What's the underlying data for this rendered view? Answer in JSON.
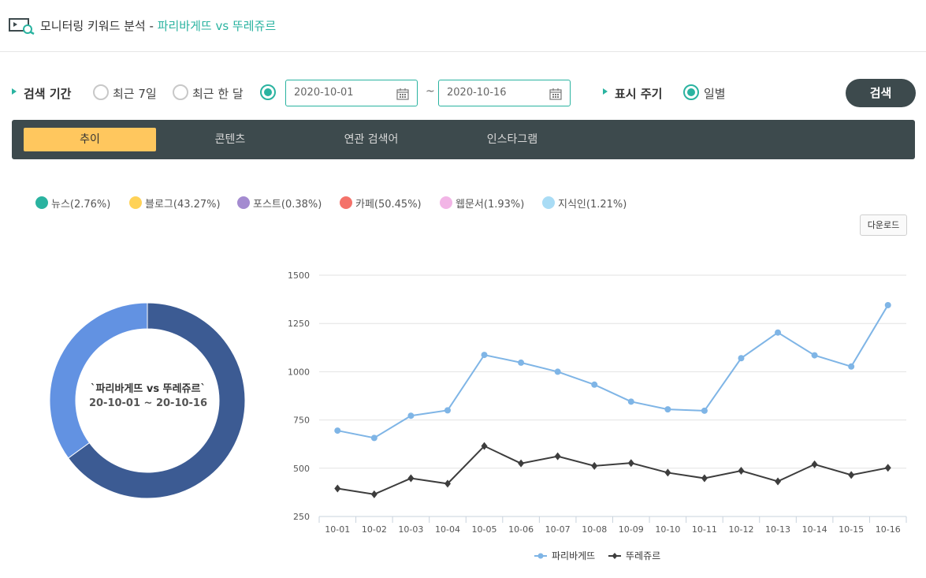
{
  "header": {
    "title_prefix": "모니터링 키워드 분석 - ",
    "title_keywords": "파리바게뜨 vs 뚜레쥬르"
  },
  "search": {
    "period_label": "검색 기간",
    "option_7days": "최근 7일",
    "option_month": "최근 한 달",
    "start_date": "2020-10-01",
    "end_date": "2020-10-16",
    "tilde": "~",
    "cycle_label": "표시 주기",
    "cycle_option": "일별",
    "search_button": "검색"
  },
  "tabs": [
    {
      "label": "추이",
      "active": true
    },
    {
      "label": "콘텐츠",
      "active": false
    },
    {
      "label": "연관 검색어",
      "active": false
    },
    {
      "label": "인스타그램",
      "active": false
    }
  ],
  "source_legend": [
    {
      "label": "뉴스(2.76%)",
      "color": "#2ab3a0",
      "share": 2.76
    },
    {
      "label": "블로그(43.27%)",
      "color": "#ffd257",
      "share": 43.27
    },
    {
      "label": "포스트(0.38%)",
      "color": "#a48bd0",
      "share": 0.38
    },
    {
      "label": "카페(50.45%)",
      "color": "#f4726a",
      "share": 50.45
    },
    {
      "label": "웹문서(1.93%)",
      "color": "#f2b5e6",
      "share": 1.93
    },
    {
      "label": "지식인(1.21%)",
      "color": "#a9dcf5",
      "share": 1.21
    }
  ],
  "download_button": "다운로드",
  "donut": {
    "title": "`파리바게뜨 vs 뚜레쥬르`",
    "range": "20-10-01 ~ 20-10-16",
    "segments": [
      {
        "name": "파리바게뜨",
        "share": 0.65,
        "color": "#3c5b93"
      },
      {
        "name": "뚜레쥬르",
        "share": 0.35,
        "color": "#6292e2"
      }
    ]
  },
  "chart_data": {
    "type": "line",
    "categories": [
      "10-01",
      "10-02",
      "10-03",
      "10-04",
      "10-05",
      "10-06",
      "10-07",
      "10-08",
      "10-09",
      "10-10",
      "10-11",
      "10-12",
      "10-13",
      "10-14",
      "10-15",
      "10-16"
    ],
    "ylim": [
      250,
      1500
    ],
    "yticks": [
      250,
      500,
      750,
      1000,
      1250,
      1500
    ],
    "grid": true,
    "legend_position": "bottom",
    "series": [
      {
        "name": "파리바게뜨",
        "color": "#7fb5e6",
        "marker": "circle",
        "values": [
          695,
          657,
          772,
          800,
          1087,
          1047,
          1000,
          933,
          845,
          805,
          798,
          1070,
          1203,
          1085,
          1027,
          1345
        ]
      },
      {
        "name": "뚜레쥬르",
        "color": "#3d3d3d",
        "marker": "diamond",
        "values": [
          395,
          365,
          448,
          420,
          615,
          525,
          562,
          512,
          527,
          477,
          448,
          487,
          432,
          520,
          465,
          502
        ]
      }
    ]
  }
}
